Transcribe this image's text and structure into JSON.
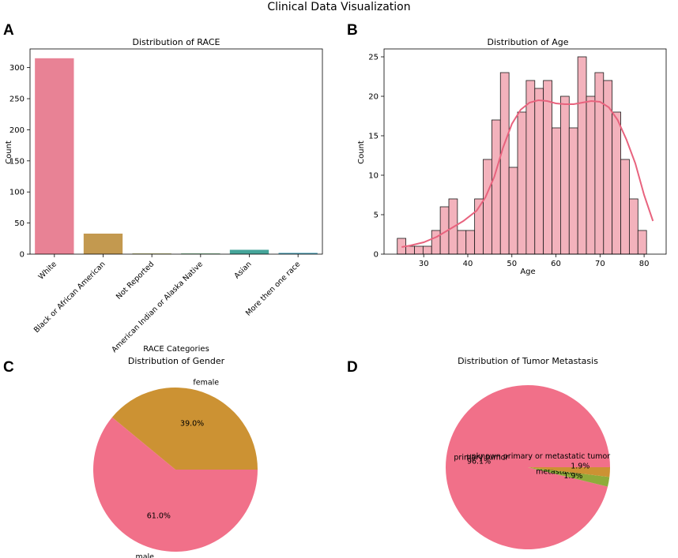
{
  "suptitle": "Clinical Data Visualization",
  "panel_letters": [
    "A",
    "B",
    "C",
    "D"
  ],
  "chart_data": [
    {
      "panel": "A",
      "type": "bar",
      "title": "Distribution of RACE",
      "xlabel": "RACE Categories",
      "ylabel": "Count",
      "categories": [
        "White",
        "Black or African American",
        "Not Reported",
        "American Indian or Alaska Native",
        "Asian",
        "More then one race"
      ],
      "values": [
        315,
        33,
        1,
        1,
        7,
        2
      ],
      "colors": [
        "#e88295",
        "#c3994f",
        "#9f9f3c",
        "#4ea363",
        "#45a59a",
        "#4aa0b8"
      ],
      "ylim": [
        0,
        330
      ],
      "yticks": [
        0,
        50,
        100,
        150,
        200,
        250,
        300
      ]
    },
    {
      "panel": "B",
      "type": "bar",
      "subtype": "histogram",
      "title": "Distribution of Age",
      "xlabel": "Age",
      "ylabel": "Count",
      "bin_start": 24,
      "bin_width": 1.95,
      "values": [
        2,
        1,
        1,
        1,
        3,
        6,
        7,
        3,
        3,
        7,
        12,
        17,
        23,
        11,
        18,
        22,
        21,
        22,
        16,
        20,
        16,
        25,
        20,
        23,
        22,
        18,
        12,
        7,
        3
      ],
      "kde": [
        [
          25,
          0.9
        ],
        [
          27,
          1.1
        ],
        [
          30,
          1.5
        ],
        [
          33,
          2.2
        ],
        [
          36,
          3.2
        ],
        [
          39,
          4.2
        ],
        [
          42,
          5.5
        ],
        [
          44,
          7.2
        ],
        [
          46,
          9.8
        ],
        [
          48,
          13.5
        ],
        [
          50,
          16.5
        ],
        [
          52,
          18.3
        ],
        [
          54,
          19.2
        ],
        [
          56,
          19.5
        ],
        [
          58,
          19.4
        ],
        [
          60,
          19.1
        ],
        [
          62,
          19.0
        ],
        [
          64,
          19.0
        ],
        [
          66,
          19.2
        ],
        [
          68,
          19.4
        ],
        [
          70,
          19.3
        ],
        [
          72,
          18.6
        ],
        [
          74,
          17.0
        ],
        [
          76,
          14.5
        ],
        [
          78,
          11.5
        ],
        [
          80,
          7.5
        ],
        [
          82,
          4.2
        ]
      ],
      "bar_color": "#f3b2bc",
      "kde_color": "#e8637e",
      "xlim": [
        21,
        85
      ],
      "ylim": [
        0,
        26
      ],
      "xticks": [
        30,
        40,
        50,
        60,
        70,
        80
      ],
      "yticks": [
        0,
        5,
        10,
        15,
        20,
        25
      ]
    },
    {
      "panel": "C",
      "type": "pie",
      "title": "Distribution of Gender",
      "labels": [
        "female",
        "male"
      ],
      "values": [
        39.0,
        61.0
      ],
      "pct_labels": [
        "39.0%",
        "61.0%"
      ],
      "colors": [
        "#cc9233",
        "#f17089"
      ]
    },
    {
      "panel": "D",
      "type": "pie",
      "title": "Distribution of Tumor Metastasis",
      "labels": [
        "primary tumor",
        "metastatic tumor",
        "unknown primary or metastatic tumor"
      ],
      "values": [
        96.1,
        1.9,
        1.9
      ],
      "pct_labels": [
        "96.1%",
        "1.9%",
        "1.9%"
      ],
      "colors": [
        "#f17089",
        "#8fab3a",
        "#cc9233"
      ]
    }
  ]
}
